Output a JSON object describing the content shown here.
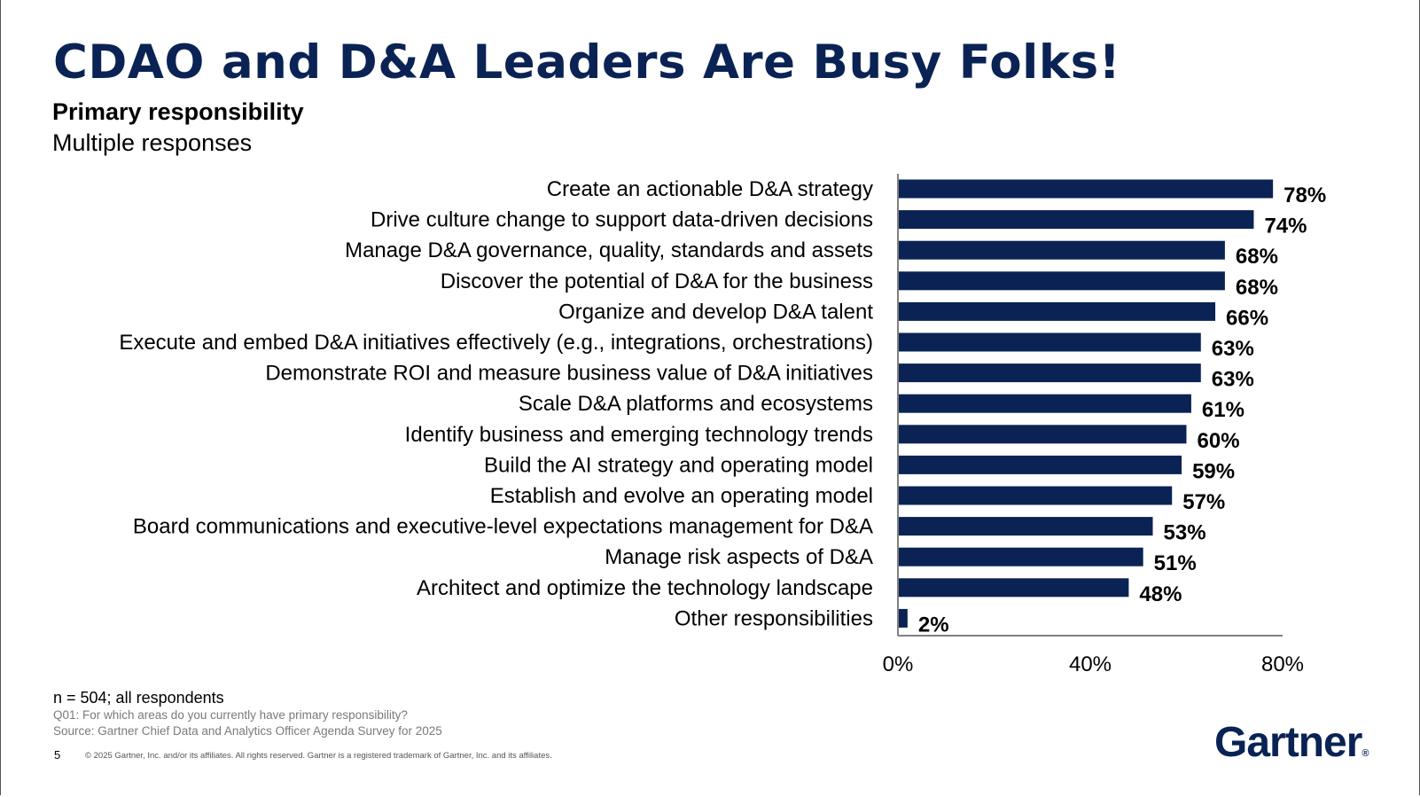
{
  "slide": {
    "title": "CDAO and D&A Leaders Are Busy Folks!",
    "subtitle": "Primary responsibility",
    "subtitle2": "Multiple responses",
    "n_note": "n = 504; all respondents",
    "question_note": "Q01: For which areas do you currently have primary responsibility?",
    "source_note": "Source: Gartner Chief Data and Analytics Officer Agenda Survey for 2025",
    "page_number": "5",
    "copyright": "© 2025 Gartner, Inc. and/or its affiliates. All rights reserved. Gartner is a registered trademark of Gartner, Inc. and its affiliates.",
    "logo_text": "Gartner",
    "logo_mark": "®"
  },
  "colors": {
    "bar": "#0a2354",
    "title": "#0a2354",
    "axis": "#808080"
  },
  "chart_data": {
    "type": "bar",
    "orientation": "horizontal",
    "categories": [
      "Create an actionable D&A strategy",
      "Drive culture change to support data-driven decisions",
      "Manage D&A governance, quality, standards and assets",
      "Discover the potential of D&A for the business",
      "Organize and develop D&A talent",
      "Execute and embed D&A initiatives effectively (e.g., integrations, orchestrations)",
      "Demonstrate ROI and measure business value of D&A initiatives",
      "Scale D&A platforms and ecosystems",
      "Identify business and emerging technology trends",
      "Build the AI strategy and operating model",
      "Establish and evolve an operating model",
      "Board communications and executive-level expectations management for D&A",
      "Manage risk aspects of D&A",
      "Architect and optimize the technology landscape",
      "Other responsibilities"
    ],
    "values": [
      78,
      74,
      68,
      68,
      66,
      63,
      63,
      61,
      60,
      59,
      57,
      53,
      51,
      48,
      2
    ],
    "value_labels": [
      "78%",
      "74%",
      "68%",
      "68%",
      "66%",
      "63%",
      "63%",
      "61%",
      "60%",
      "59%",
      "57%",
      "53%",
      "51%",
      "48%",
      "2%"
    ],
    "x_ticks": [
      0,
      40,
      80
    ],
    "x_tick_labels": [
      "0%",
      "40%",
      "80%"
    ],
    "xlim": [
      0,
      80
    ],
    "grid": false,
    "legend": "none"
  }
}
